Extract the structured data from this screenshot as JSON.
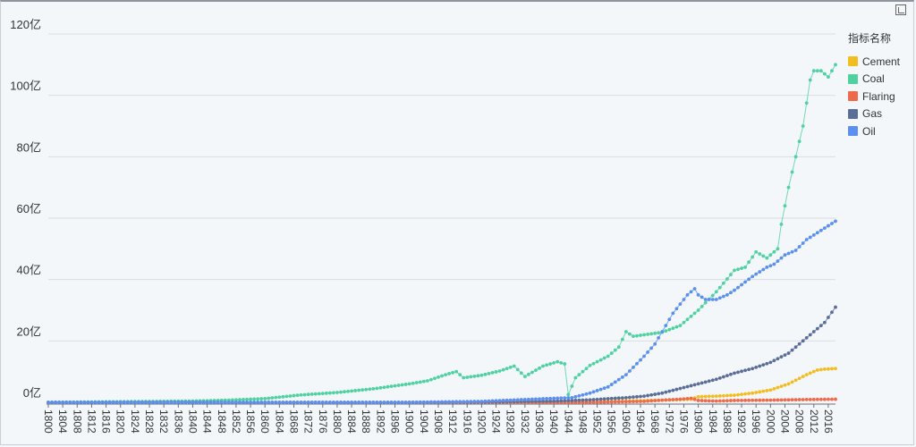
{
  "chart_data": {
    "type": "line",
    "legend": {
      "title": "指标名称",
      "placement": "right"
    },
    "y_axis": {
      "min": 0,
      "max": 120,
      "step": 20,
      "tick_labels": [
        "0亿",
        "20亿",
        "40亿",
        "60亿",
        "80亿",
        "100亿",
        "120亿"
      ],
      "grid": true
    },
    "x_axis": {
      "start": 1800,
      "end": 2018,
      "label_step": 4
    },
    "series": [
      {
        "name": "Cement",
        "color": "#f2bd21",
        "points": [
          [
            1928,
            0
          ],
          [
            1940,
            0.05
          ],
          [
            1950,
            0.1
          ],
          [
            1960,
            0.4
          ],
          [
            1970,
            0.7
          ],
          [
            1978,
            1
          ],
          [
            1980,
            1.8
          ],
          [
            1985,
            2
          ],
          [
            1990,
            2.3
          ],
          [
            1995,
            3
          ],
          [
            2000,
            4
          ],
          [
            2005,
            6
          ],
          [
            2010,
            9
          ],
          [
            2013,
            10.5
          ],
          [
            2015,
            10.8
          ],
          [
            2018,
            11
          ]
        ]
      },
      {
        "name": "Coal",
        "color": "#4fd1a0",
        "points": [
          [
            1800,
            0
          ],
          [
            1820,
            0.2
          ],
          [
            1840,
            0.4
          ],
          [
            1850,
            0.7
          ],
          [
            1860,
            1.2
          ],
          [
            1870,
            2.4
          ],
          [
            1880,
            3.2
          ],
          [
            1890,
            4.4
          ],
          [
            1900,
            6
          ],
          [
            1905,
            7
          ],
          [
            1910,
            9
          ],
          [
            1913,
            10
          ],
          [
            1915,
            8
          ],
          [
            1920,
            8.8
          ],
          [
            1925,
            10.2
          ],
          [
            1929,
            11.8
          ],
          [
            1932,
            8.4
          ],
          [
            1937,
            11.8
          ],
          [
            1941,
            13.2
          ],
          [
            1943,
            12.5
          ],
          [
            1944,
            2.5
          ],
          [
            1946,
            8
          ],
          [
            1950,
            12
          ],
          [
            1955,
            15
          ],
          [
            1958,
            18
          ],
          [
            1960,
            23
          ],
          [
            1962,
            21.5
          ],
          [
            1965,
            22
          ],
          [
            1970,
            22.8
          ],
          [
            1975,
            25
          ],
          [
            1980,
            30
          ],
          [
            1985,
            36
          ],
          [
            1990,
            43
          ],
          [
            1993,
            44
          ],
          [
            1996,
            49
          ],
          [
            1999,
            47
          ],
          [
            2002,
            50
          ],
          [
            2003,
            58
          ],
          [
            2005,
            70
          ],
          [
            2007,
            80
          ],
          [
            2009,
            90
          ],
          [
            2011,
            105
          ],
          [
            2012,
            108
          ],
          [
            2014,
            108
          ],
          [
            2016,
            106
          ],
          [
            2018,
            110
          ]
        ]
      },
      {
        "name": "Flaring",
        "color": "#ef6a4a",
        "points": [
          [
            1900,
            0
          ],
          [
            1950,
            0
          ],
          [
            1965,
            0.3
          ],
          [
            1970,
            0.7
          ],
          [
            1975,
            1
          ],
          [
            1978,
            1.3
          ],
          [
            1980,
            0.6
          ],
          [
            1985,
            0.4
          ],
          [
            1990,
            0.6
          ],
          [
            2000,
            0.7
          ],
          [
            2010,
            0.9
          ],
          [
            2018,
            1
          ]
        ]
      },
      {
        "name": "Gas",
        "color": "#5b6e97",
        "points": [
          [
            1800,
            0
          ],
          [
            1900,
            0
          ],
          [
            1920,
            0.1
          ],
          [
            1940,
            0.4
          ],
          [
            1950,
            0.8
          ],
          [
            1960,
            1.5
          ],
          [
            1965,
            2
          ],
          [
            1970,
            3
          ],
          [
            1975,
            4.5
          ],
          [
            1980,
            6
          ],
          [
            1985,
            7.5
          ],
          [
            1990,
            9.5
          ],
          [
            1995,
            11
          ],
          [
            2000,
            13
          ],
          [
            2005,
            16
          ],
          [
            2010,
            21
          ],
          [
            2015,
            26
          ],
          [
            2018,
            31
          ]
        ]
      },
      {
        "name": "Oil",
        "color": "#5b8ff0",
        "points": [
          [
            1800,
            0
          ],
          [
            1900,
            0
          ],
          [
            1920,
            0.3
          ],
          [
            1930,
            0.8
          ],
          [
            1938,
            1.2
          ],
          [
            1945,
            1.5
          ],
          [
            1950,
            3
          ],
          [
            1955,
            5
          ],
          [
            1960,
            9
          ],
          [
            1965,
            15
          ],
          [
            1968,
            19
          ],
          [
            1970,
            23
          ],
          [
            1973,
            29
          ],
          [
            1975,
            32
          ],
          [
            1977,
            35
          ],
          [
            1979,
            37
          ],
          [
            1980,
            35
          ],
          [
            1982,
            33.5
          ],
          [
            1985,
            33.5
          ],
          [
            1988,
            35
          ],
          [
            1990,
            36.5
          ],
          [
            1995,
            41
          ],
          [
            1999,
            44
          ],
          [
            2001,
            45
          ],
          [
            2004,
            48
          ],
          [
            2007,
            49.5
          ],
          [
            2010,
            53
          ],
          [
            2014,
            56
          ],
          [
            2018,
            59
          ]
        ]
      }
    ]
  }
}
